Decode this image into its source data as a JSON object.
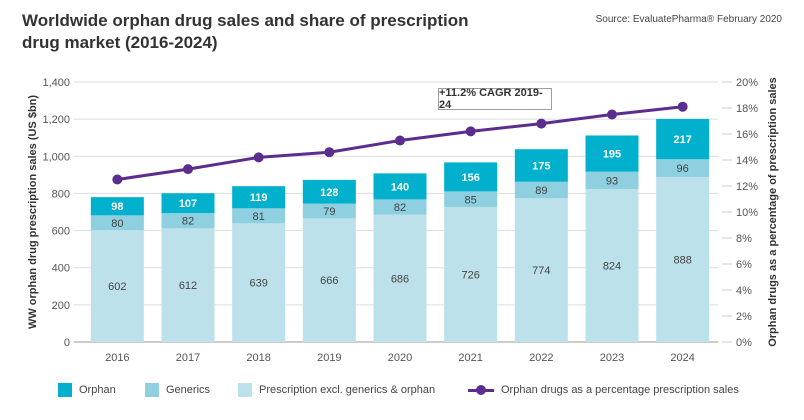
{
  "header": {
    "title": "Worldwide orphan drug sales and share of prescription drug market (2016-2024)",
    "source": "Source: EvaluatePharma® February 2020"
  },
  "colors": {
    "orphan": "#00b0cc",
    "generics": "#8ecfe0",
    "prescription": "#bde1ea",
    "line": "#5b2d8e",
    "grid": "#dddddd"
  },
  "annotation": {
    "cagr": "+11.2% CAGR 2019-24"
  },
  "legend": {
    "orphan": "Orphan",
    "generics": "Generics",
    "prescription": "Prescription excl. generics & orphan",
    "line": "Orphan drugs as a percentage prescription sales"
  },
  "chart_data": {
    "type": "bar",
    "stacked": true,
    "title": "Worldwide orphan drug sales and share of prescription drug market (2016-2024)",
    "categories": [
      "2016",
      "2017",
      "2018",
      "2019",
      "2020",
      "2021",
      "2022",
      "2023",
      "2024"
    ],
    "series": [
      {
        "name": "Prescription excl. generics & orphan",
        "type": "bar",
        "axis": "left",
        "values": [
          602,
          612,
          639,
          666,
          686,
          726,
          774,
          824,
          888
        ]
      },
      {
        "name": "Generics",
        "type": "bar",
        "axis": "left",
        "values": [
          80,
          82,
          81,
          79,
          82,
          85,
          89,
          93,
          96
        ]
      },
      {
        "name": "Orphan",
        "type": "bar",
        "axis": "left",
        "values": [
          98,
          107,
          119,
          128,
          140,
          156,
          175,
          195,
          217
        ]
      },
      {
        "name": "Orphan drugs as a percentage prescription sales",
        "type": "line",
        "axis": "right",
        "values": [
          12.5,
          13.3,
          14.2,
          14.6,
          15.5,
          16.2,
          16.8,
          17.5,
          18.1
        ]
      }
    ],
    "ylabel": "WW orphan drug prescription sales (US $bn)",
    "ylabel_right": "Orphan drugs as a percentage of prescription sales",
    "xlabel": "",
    "ylim": [
      0,
      1400
    ],
    "ylim_right": [
      0,
      20
    ],
    "yticks": [
      "0",
      "200",
      "400",
      "600",
      "800",
      "1,000",
      "1,200",
      "1,400"
    ],
    "yticks_right": [
      "0%",
      "2%",
      "4%",
      "6%",
      "8%",
      "10%",
      "12%",
      "14%",
      "16%",
      "18%",
      "20%"
    ],
    "grid": true,
    "legend_position": "bottom",
    "annotations": [
      "+11.2% CAGR 2019-24"
    ]
  }
}
